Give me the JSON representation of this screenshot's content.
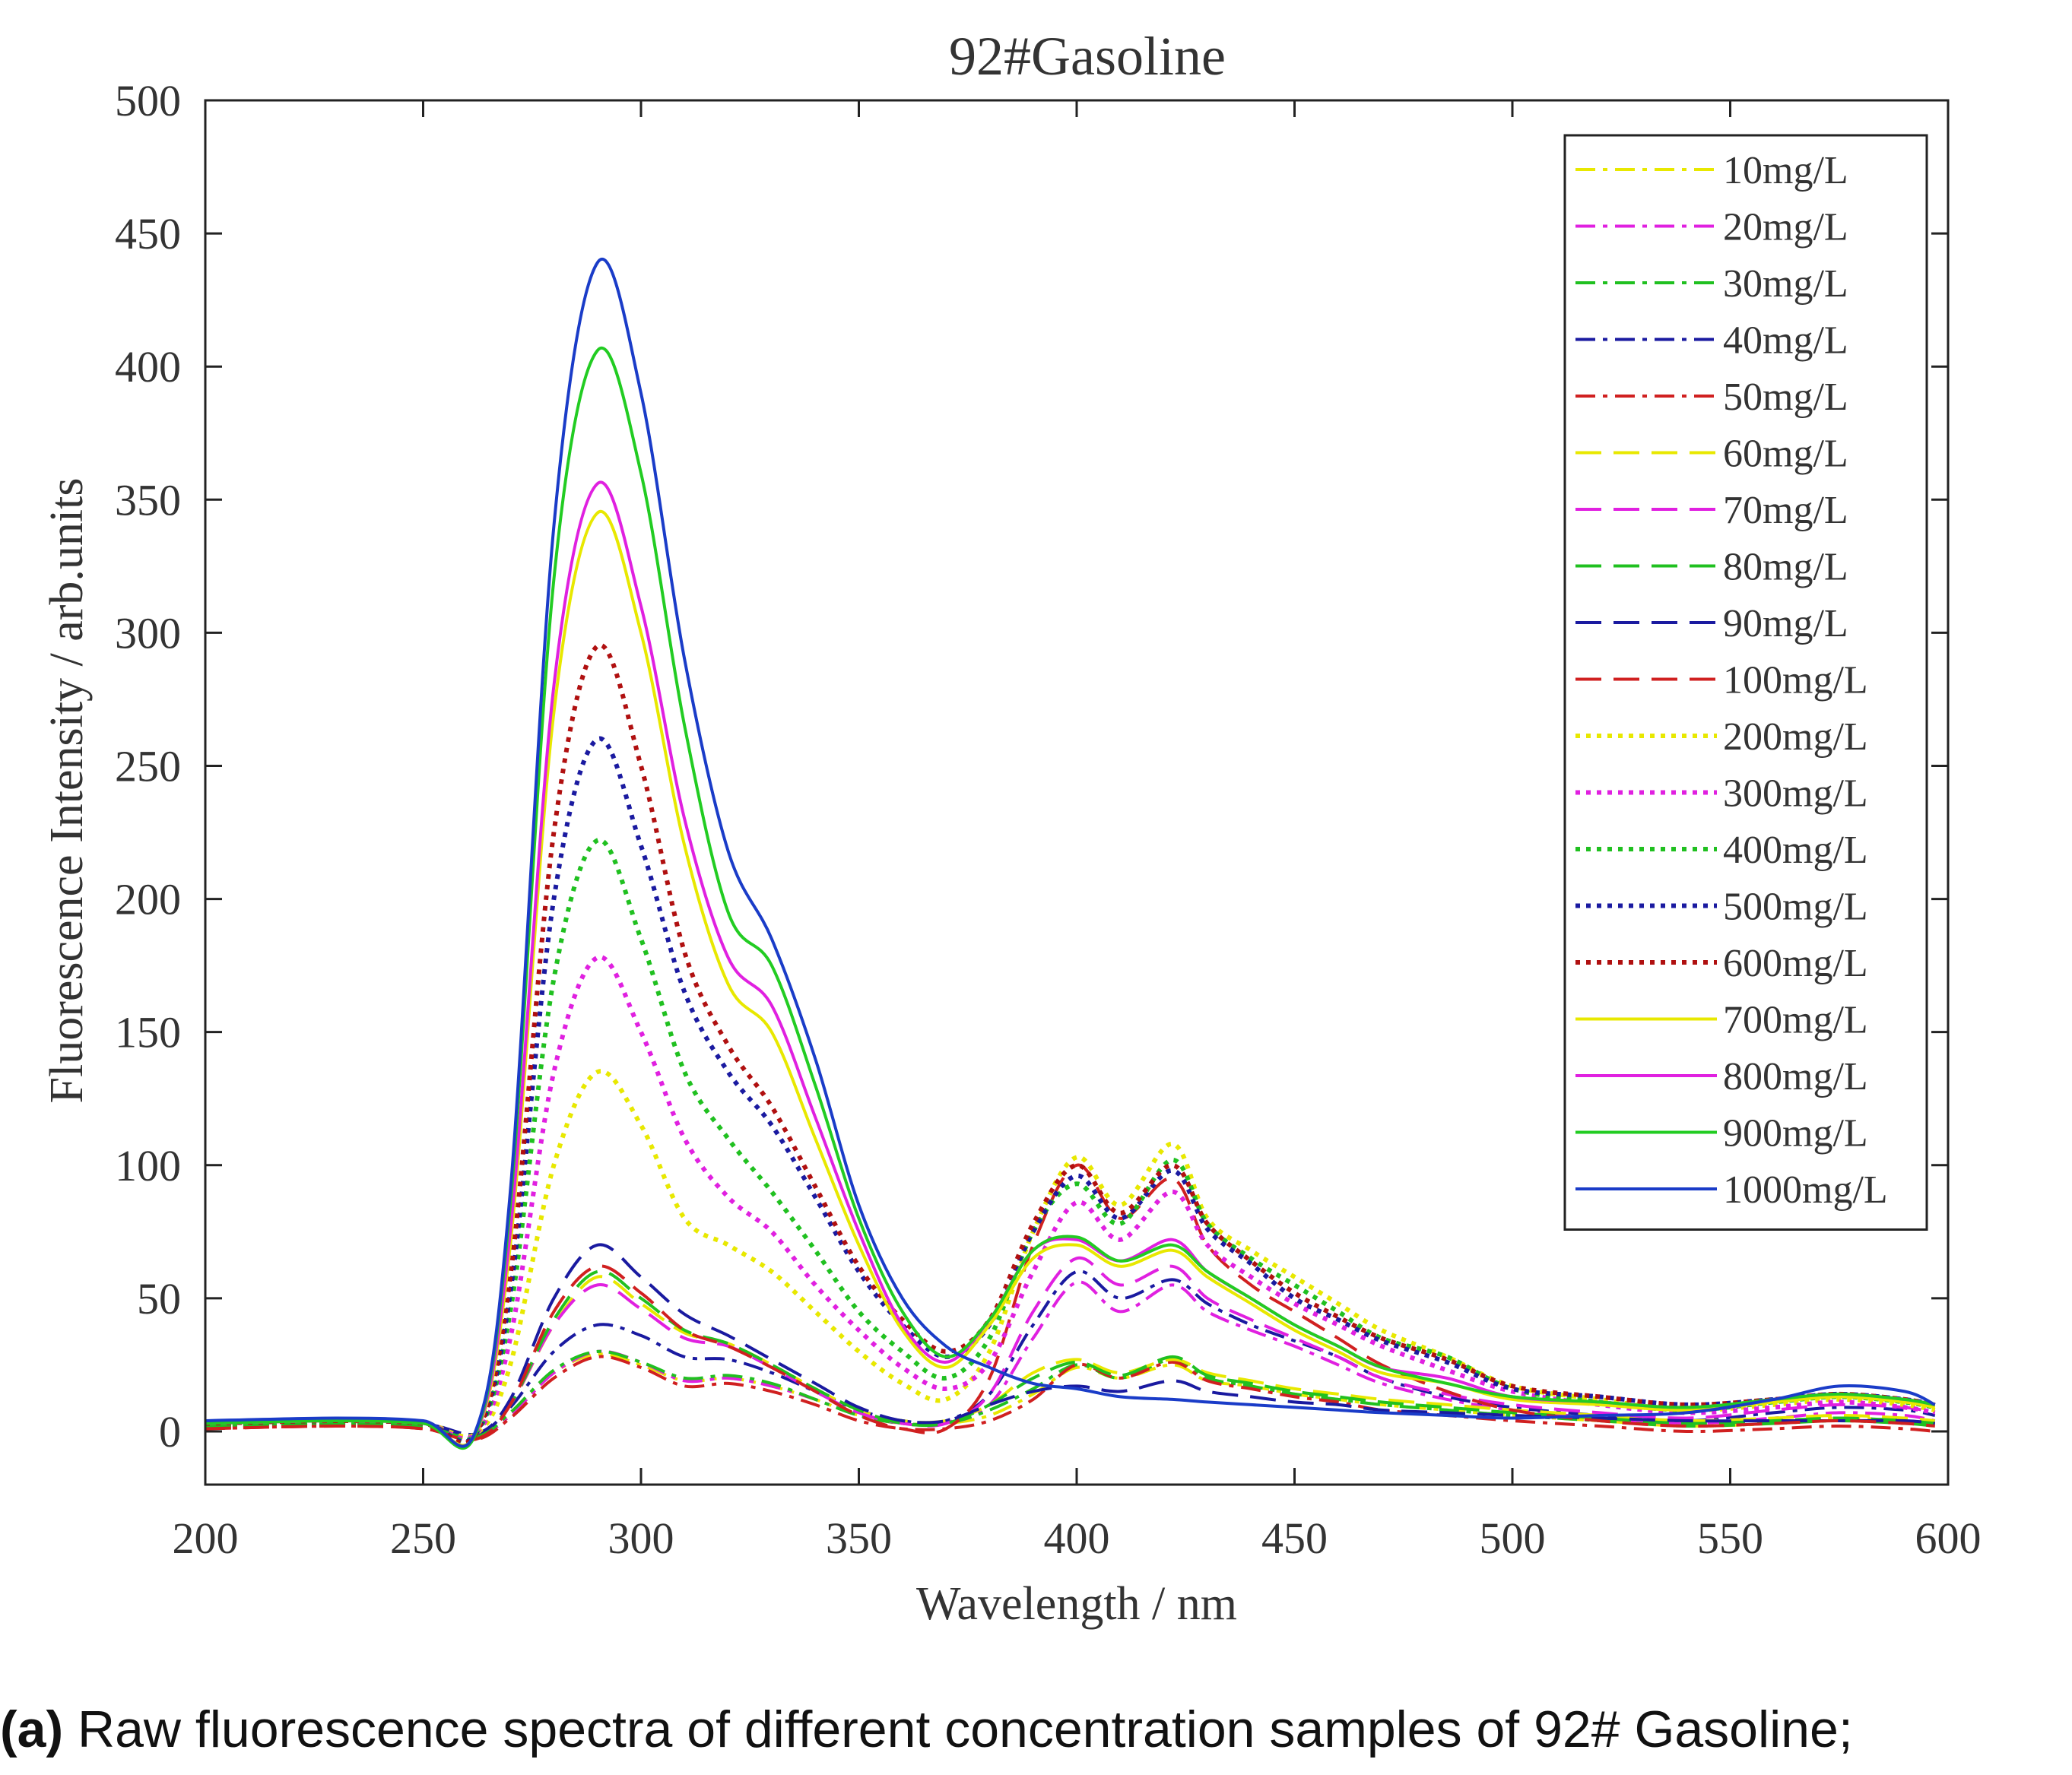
{
  "caption": {
    "label": "(a)",
    "text": " Raw fluorescence spectra of different concentration samples of 92# Gasoline;"
  },
  "chart_data": {
    "type": "line",
    "title": "92#Gasoline",
    "xlabel": "Wavelength / nm",
    "ylabel": "Fluorescence Intensity / arb.units",
    "xlim": [
      200,
      600
    ],
    "ylim": [
      -20,
      500
    ],
    "xticks": [
      200,
      250,
      300,
      350,
      400,
      450,
      500,
      550,
      600
    ],
    "yticks": [
      0,
      50,
      100,
      150,
      200,
      250,
      300,
      350,
      400,
      450,
      500
    ],
    "legend_position": "top-right",
    "grid": false,
    "x": [
      200,
      230,
      250,
      262,
      270,
      280,
      290,
      300,
      310,
      320,
      330,
      340,
      350,
      360,
      370,
      380,
      390,
      400,
      410,
      422,
      430,
      440,
      450,
      460,
      470,
      485,
      500,
      520,
      540,
      560,
      575,
      590,
      597
    ],
    "series": [
      {
        "name": "10mg/L",
        "color": "#e8e800",
        "dash": "dashdot",
        "values": [
          2,
          3,
          2,
          -2,
          6,
          22,
          29,
          25,
          19,
          20,
          17,
          12,
          6,
          3,
          3,
          6,
          14,
          24,
          20,
          25,
          19,
          17,
          14,
          12,
          10,
          8,
          6,
          4,
          2,
          3,
          5,
          4,
          3
        ]
      },
      {
        "name": "20mg/L",
        "color": "#e020e0",
        "dash": "dashdot",
        "values": [
          2,
          3,
          2,
          -2,
          6,
          22,
          30,
          26,
          19,
          20,
          17,
          12,
          6,
          3,
          3,
          10,
          35,
          56,
          45,
          55,
          45,
          38,
          32,
          25,
          18,
          12,
          8,
          5,
          3,
          5,
          7,
          6,
          4
        ]
      },
      {
        "name": "30mg/L",
        "color": "#20c020",
        "dash": "dashdot",
        "values": [
          2,
          3,
          2,
          -2,
          7,
          23,
          30,
          26,
          20,
          21,
          18,
          12,
          6,
          3,
          3,
          8,
          16,
          25,
          20,
          27,
          20,
          17,
          14,
          12,
          10,
          8,
          6,
          4,
          2,
          3,
          4,
          3,
          2
        ]
      },
      {
        "name": "40mg/L",
        "color": "#1a1aa0",
        "dash": "dashdot",
        "values": [
          3,
          4,
          3,
          -1,
          9,
          30,
          40,
          36,
          28,
          27,
          22,
          15,
          8,
          4,
          4,
          14,
          40,
          60,
          50,
          57,
          48,
          40,
          34,
          28,
          20,
          13,
          9,
          6,
          4,
          7,
          9,
          8,
          6
        ]
      },
      {
        "name": "50mg/L",
        "color": "#d02020",
        "dash": "dashdot",
        "values": [
          1,
          2,
          1,
          -3,
          5,
          20,
          28,
          24,
          17,
          18,
          15,
          10,
          4,
          1,
          1,
          4,
          12,
          25,
          20,
          26,
          19,
          16,
          13,
          11,
          8,
          6,
          4,
          2,
          0,
          1,
          2,
          1,
          0
        ]
      },
      {
        "name": "60mg/L",
        "color": "#e8e800",
        "dash": "dash",
        "values": [
          2,
          3,
          2,
          -2,
          10,
          40,
          58,
          48,
          37,
          33,
          25,
          16,
          8,
          4,
          4,
          10,
          22,
          27,
          22,
          27,
          22,
          19,
          16,
          14,
          12,
          10,
          8,
          6,
          4,
          5,
          6,
          5,
          4
        ]
      },
      {
        "name": "70mg/L",
        "color": "#e020e0",
        "dash": "dash",
        "values": [
          2,
          3,
          2,
          -2,
          10,
          40,
          55,
          46,
          35,
          32,
          24,
          15,
          7,
          3,
          3,
          14,
          45,
          65,
          55,
          62,
          50,
          42,
          35,
          28,
          20,
          14,
          10,
          7,
          5,
          8,
          10,
          9,
          7
        ]
      },
      {
        "name": "80mg/L",
        "color": "#20c020",
        "dash": "dash",
        "values": [
          2,
          3,
          2,
          -2,
          10,
          42,
          60,
          50,
          38,
          33,
          25,
          16,
          8,
          3,
          3,
          10,
          20,
          26,
          21,
          28,
          21,
          18,
          15,
          13,
          11,
          9,
          7,
          5,
          3,
          4,
          5,
          4,
          3
        ]
      },
      {
        "name": "90mg/L",
        "color": "#1a1aa0",
        "dash": "dash",
        "values": [
          3,
          4,
          3,
          -1,
          12,
          50,
          70,
          58,
          44,
          36,
          27,
          18,
          9,
          4,
          4,
          10,
          15,
          17,
          15,
          19,
          15,
          13,
          11,
          10,
          8,
          7,
          6,
          5,
          4,
          4,
          4,
          4,
          3
        ]
      },
      {
        "name": "100mg/L",
        "color": "#d02020",
        "dash": "dash",
        "values": [
          1,
          2,
          1,
          -3,
          10,
          45,
          62,
          52,
          38,
          32,
          24,
          15,
          6,
          1,
          1,
          20,
          70,
          100,
          80,
          95,
          70,
          55,
          45,
          35,
          25,
          15,
          8,
          4,
          2,
          3,
          4,
          3,
          2
        ]
      },
      {
        "name": "200mg/L",
        "color": "#e8e800",
        "dash": "dot",
        "values": [
          3,
          4,
          3,
          -1,
          25,
          100,
          135,
          115,
          80,
          70,
          60,
          45,
          30,
          18,
          12,
          30,
          75,
          103,
          85,
          108,
          80,
          68,
          58,
          48,
          38,
          28,
          17,
          12,
          8,
          10,
          12,
          10,
          8
        ]
      },
      {
        "name": "300mg/L",
        "color": "#e020e0",
        "dash": "dot",
        "values": [
          3,
          4,
          3,
          -1,
          35,
          135,
          178,
          150,
          110,
          88,
          75,
          55,
          38,
          24,
          16,
          26,
          60,
          86,
          72,
          90,
          70,
          58,
          48,
          40,
          32,
          23,
          15,
          10,
          7,
          9,
          11,
          9,
          7
        ]
      },
      {
        "name": "400mg/L",
        "color": "#20c020",
        "dash": "dot",
        "values": [
          3,
          4,
          3,
          -1,
          45,
          170,
          222,
          185,
          135,
          110,
          90,
          68,
          45,
          30,
          20,
          35,
          75,
          93,
          78,
          102,
          78,
          65,
          55,
          45,
          35,
          28,
          16,
          11,
          8,
          11,
          13,
          11,
          9
        ]
      },
      {
        "name": "500mg/L",
        "color": "#1a1aa0",
        "dash": "dot",
        "values": [
          3,
          4,
          3,
          -1,
          52,
          200,
          260,
          220,
          165,
          135,
          115,
          88,
          60,
          40,
          28,
          40,
          75,
          96,
          80,
          98,
          76,
          63,
          50,
          42,
          34,
          26,
          16,
          13,
          10,
          12,
          14,
          12,
          10
        ]
      },
      {
        "name": "600mg/L",
        "color": "#b01010",
        "dash": "dot",
        "values": [
          3,
          4,
          3,
          -1,
          58,
          225,
          295,
          250,
          180,
          145,
          122,
          92,
          62,
          42,
          30,
          42,
          78,
          100,
          82,
          100,
          78,
          64,
          52,
          43,
          35,
          27,
          17,
          13,
          10,
          12,
          14,
          12,
          10
        ]
      },
      {
        "name": "700mg/L",
        "color": "#e8e800",
        "dash": "solid",
        "values": [
          3,
          4,
          3,
          -1,
          70,
          270,
          345,
          300,
          220,
          168,
          150,
          110,
          70,
          38,
          24,
          40,
          65,
          70,
          62,
          68,
          58,
          48,
          38,
          30,
          22,
          18,
          12,
          10,
          8,
          11,
          13,
          11,
          9
        ]
      },
      {
        "name": "800mg/L",
        "color": "#e020e0",
        "dash": "solid",
        "values": [
          3,
          4,
          3,
          -1,
          75,
          280,
          356,
          310,
          230,
          178,
          160,
          118,
          75,
          40,
          26,
          42,
          68,
          72,
          64,
          72,
          60,
          50,
          40,
          32,
          24,
          20,
          13,
          11,
          9,
          12,
          14,
          12,
          10
        ]
      },
      {
        "name": "900mg/L",
        "color": "#22cc22",
        "dash": "solid",
        "values": [
          3,
          4,
          3,
          -1,
          85,
          320,
          406,
          360,
          265,
          195,
          175,
          130,
          80,
          45,
          28,
          42,
          68,
          73,
          64,
          70,
          60,
          50,
          40,
          32,
          24,
          18,
          13,
          11,
          9,
          12,
          14,
          12,
          10
        ]
      },
      {
        "name": "1000mg/L",
        "color": "#1a3cc8",
        "dash": "solid",
        "values": [
          4,
          5,
          4,
          0,
          90,
          340,
          439,
          390,
          290,
          218,
          185,
          140,
          85,
          50,
          32,
          24,
          18,
          16,
          13,
          12,
          11,
          10,
          9,
          8,
          7,
          6,
          5,
          6,
          7,
          12,
          17,
          15,
          10
        ]
      }
    ]
  }
}
